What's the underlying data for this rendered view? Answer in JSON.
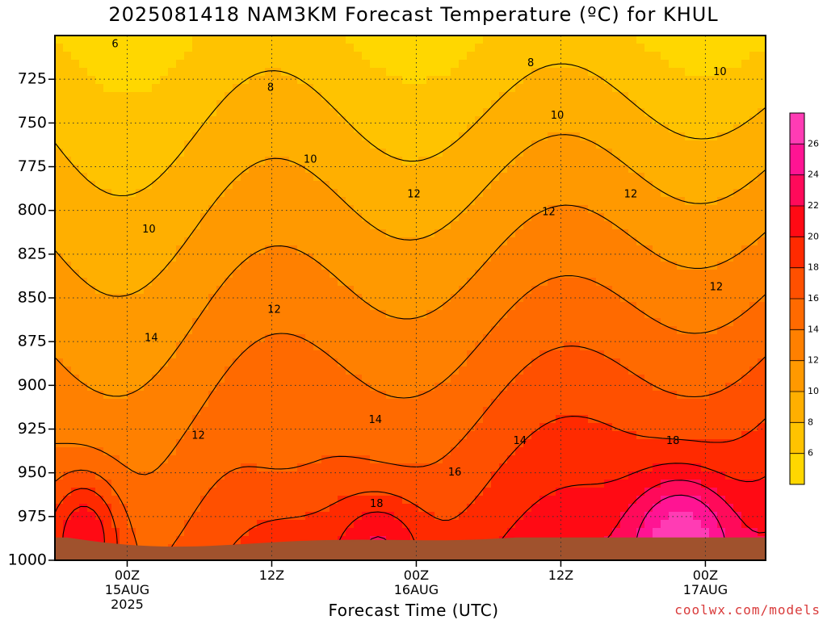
{
  "chart_data": {
    "type": "heatmap",
    "title": "2025081418 NAM3KM Forecast Temperature (ºC) for KHUL",
    "xlabel": "Forecast Time (UTC)",
    "ylabel": "",
    "y_axis": {
      "units": "hPa",
      "scale": "pressure (inverted)",
      "range": [
        1000,
        700
      ],
      "ticks": [
        725,
        750,
        775,
        800,
        825,
        850,
        875,
        900,
        925,
        950,
        975,
        1000
      ],
      "grid": true
    },
    "x_axis": {
      "range_hours": [
        -6,
        53
      ],
      "ticks": [
        {
          "hour": 0,
          "label": [
            "00Z",
            "15AUG",
            "2025"
          ]
        },
        {
          "hour": 12,
          "label": [
            "12Z"
          ]
        },
        {
          "hour": 24,
          "label": [
            "00Z",
            "16AUG"
          ]
        },
        {
          "hour": 36,
          "label": [
            "12Z"
          ]
        },
        {
          "hour": 48,
          "label": [
            "00Z",
            "17AUG"
          ]
        }
      ],
      "grid": true
    },
    "colorbar": {
      "levels": [
        6,
        8,
        10,
        12,
        14,
        16,
        18,
        20,
        22,
        24,
        26
      ],
      "tick_labels": [
        "6",
        "8",
        "10",
        "12",
        "14",
        "16",
        "18",
        "20",
        "22",
        "24",
        "26"
      ],
      "colors": [
        "#ffd700",
        "#ffc300",
        "#ffaf00",
        "#ff9900",
        "#ff8000",
        "#ff6a00",
        "#ff5000",
        "#ff2a00",
        "#ff0a14",
        "#ff0a5a",
        "#ff1493",
        "#ff3cb4"
      ]
    },
    "contour_labels": [
      {
        "text": "6",
        "hour": -1,
        "p": 705
      },
      {
        "text": "8",
        "hour": 11.9,
        "p": 730
      },
      {
        "text": "8",
        "hour": 33.5,
        "p": 716
      },
      {
        "text": "10",
        "hour": 1.8,
        "p": 811
      },
      {
        "text": "10",
        "hour": 15.2,
        "p": 771
      },
      {
        "text": "10",
        "hour": 35.7,
        "p": 746
      },
      {
        "text": "10",
        "hour": 49.2,
        "p": 721
      },
      {
        "text": "12",
        "hour": 23.8,
        "p": 791
      },
      {
        "text": "12",
        "hour": 35.0,
        "p": 801
      },
      {
        "text": "12",
        "hour": 41.8,
        "p": 791
      },
      {
        "text": "12",
        "hour": 48.9,
        "p": 844
      },
      {
        "text": "12",
        "hour": 12.2,
        "p": 857
      },
      {
        "text": "12",
        "hour": 5.9,
        "p": 929
      },
      {
        "text": "14",
        "hour": 2.0,
        "p": 873
      },
      {
        "text": "14",
        "hour": 20.6,
        "p": 920
      },
      {
        "text": "14",
        "hour": 32.6,
        "p": 932
      },
      {
        "text": "16",
        "hour": 27.2,
        "p": 950
      },
      {
        "text": "18",
        "hour": 20.7,
        "p": 968
      },
      {
        "text": "18",
        "hour": 45.3,
        "p": 932
      }
    ]
  },
  "credit": "coolwx.com/models"
}
